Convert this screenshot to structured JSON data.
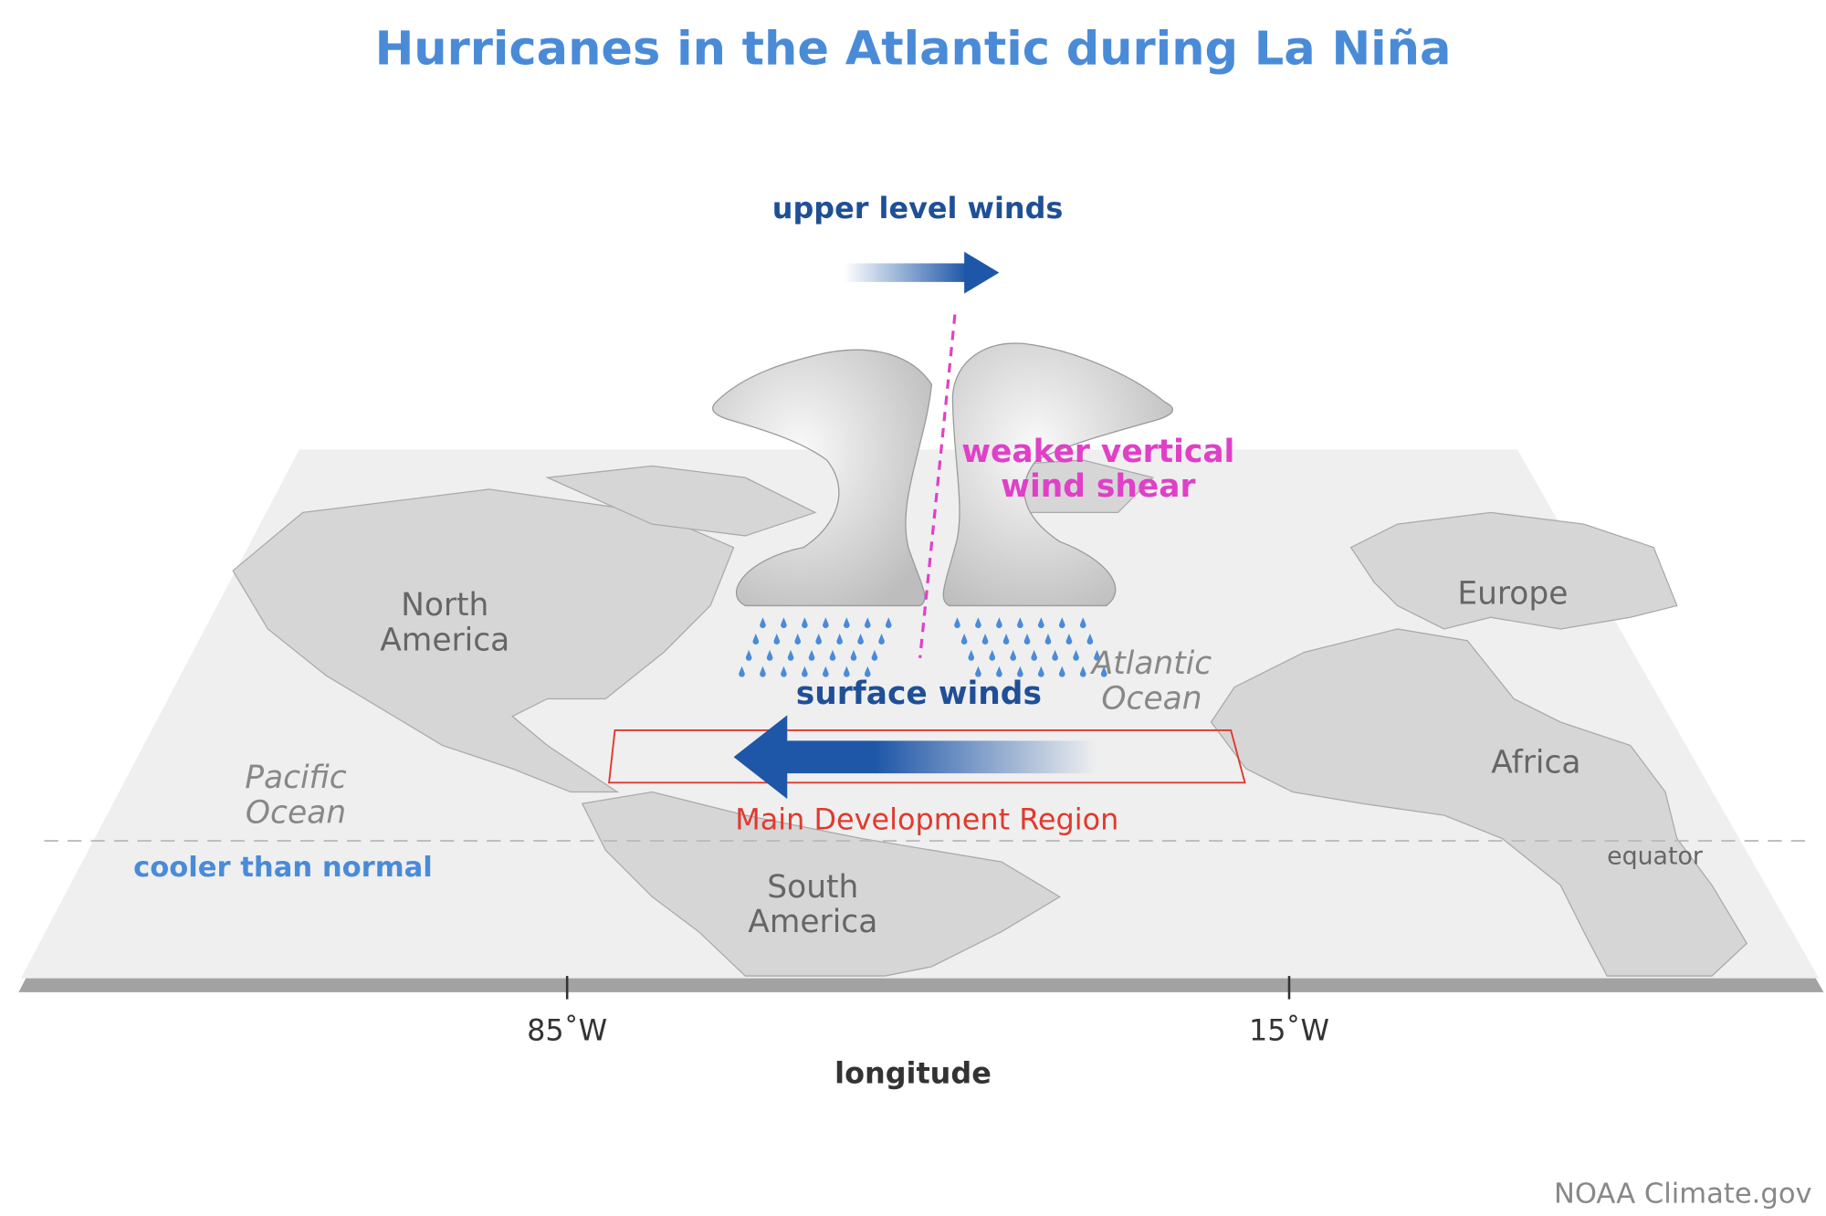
{
  "title": "Hurricanes in the Atlantic during La Niña",
  "labels": {
    "upper_winds": "upper level winds",
    "shear": [
      "weaker vertical",
      "wind shear"
    ],
    "north_america": [
      "North",
      "America"
    ],
    "europe": "Europe",
    "atlantic": [
      "Atlantic",
      "Ocean"
    ],
    "surface_winds": "surface winds",
    "pacific": [
      "Pacific",
      "Ocean"
    ],
    "africa": "Africa",
    "mdr": "Main Development Region",
    "equator": "equator",
    "cooler": "cooler than normal",
    "south_america": [
      "South",
      "America"
    ]
  },
  "axis": {
    "ticks": [
      "85˚W",
      "15˚W"
    ],
    "label": "longitude"
  },
  "credit": "NOAA Climate.gov"
}
